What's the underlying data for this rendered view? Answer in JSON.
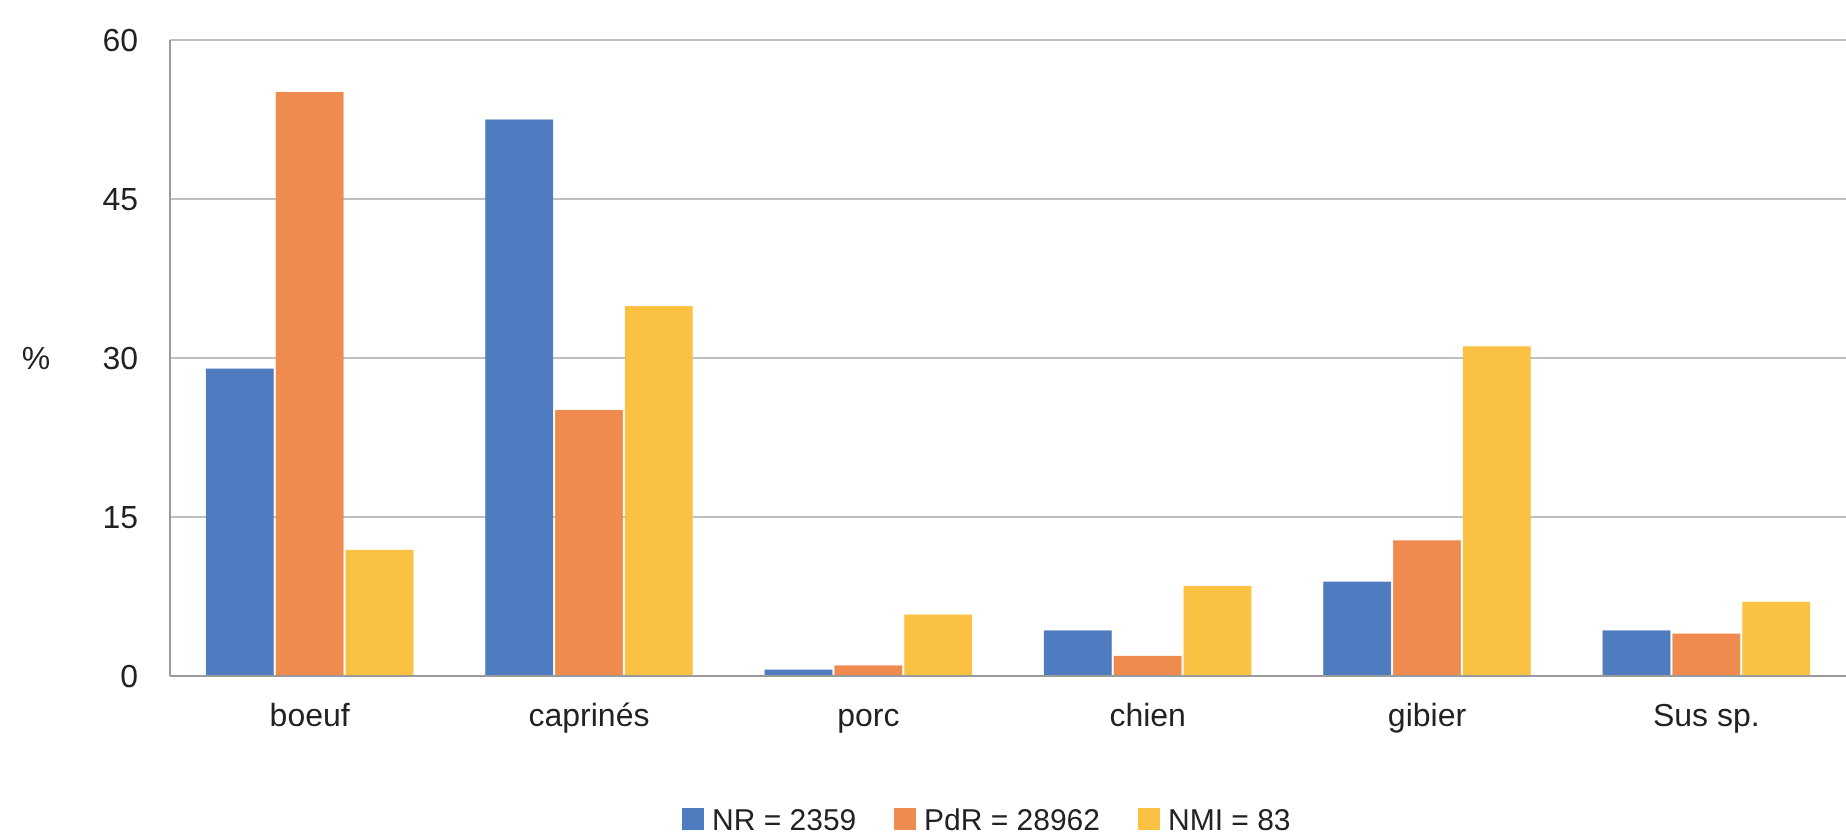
{
  "chart_data": {
    "type": "bar",
    "ylabel": "%",
    "categories": [
      "boeuf",
      "caprinés",
      "porc",
      "chien",
      "gibier",
      "Sus sp."
    ],
    "series": [
      {
        "name": "NR = 2359",
        "color": "#4f7bc0",
        "values": [
          29,
          52.5,
          0.6,
          4.3,
          8.9,
          4.3
        ]
      },
      {
        "name": "PdR = 28962",
        "color": "#f08b4f",
        "values": [
          55.1,
          25.1,
          1,
          1.9,
          12.8,
          4
        ]
      },
      {
        "name": "NMI = 83",
        "color": "#fbc143",
        "values": [
          11.9,
          34.9,
          5.8,
          8.5,
          31.1,
          7
        ]
      }
    ],
    "ylim": [
      0,
      60
    ],
    "yticks": [
      0,
      15,
      30,
      45,
      60
    ],
    "grid": "y",
    "legend": "bottom"
  }
}
